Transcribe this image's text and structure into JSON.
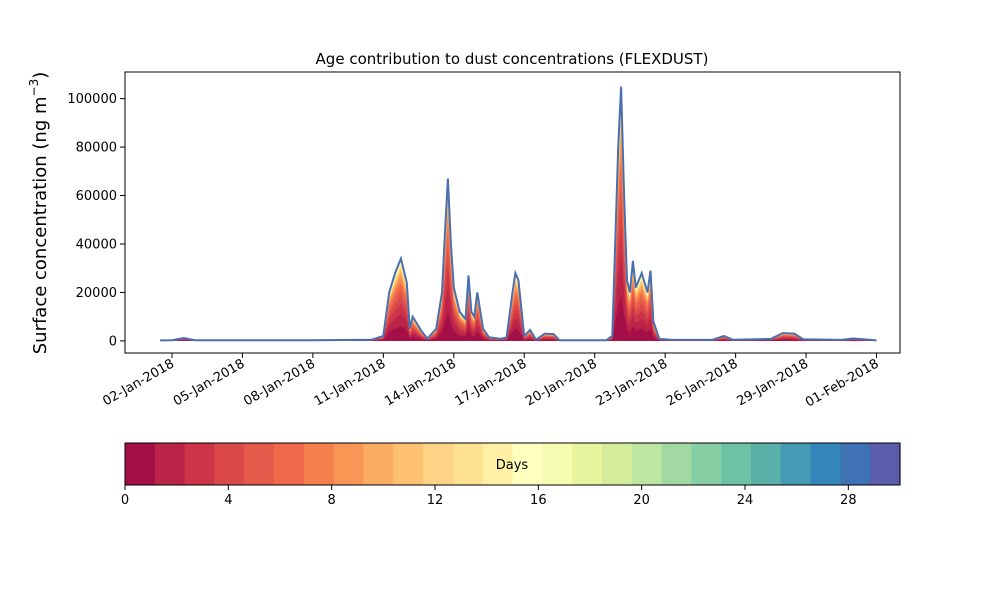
{
  "chart_data": {
    "type": "area",
    "title": "Age contribution to dust concentrations (FLEXDUST)",
    "ylabel": "Surface concentration (ng m⁻³)",
    "ylabel_main": "Surface concentration (ng m",
    "ylabel_exp": "−3",
    "ylabel_close": ")",
    "xlabel": "",
    "xlim": [
      "2017-12-31",
      "2018-02-02"
    ],
    "ylim": [
      -5000,
      111000
    ],
    "yticks": [
      0,
      20000,
      40000,
      60000,
      80000,
      100000
    ],
    "xticks": [
      {
        "date": "2018-01-02",
        "label": "02-Jan-2018"
      },
      {
        "date": "2018-01-05",
        "label": "05-Jan-2018"
      },
      {
        "date": "2018-01-08",
        "label": "08-Jan-2018"
      },
      {
        "date": "2018-01-11",
        "label": "11-Jan-2018"
      },
      {
        "date": "2018-01-14",
        "label": "14-Jan-2018"
      },
      {
        "date": "2018-01-17",
        "label": "17-Jan-2018"
      },
      {
        "date": "2018-01-20",
        "label": "20-Jan-2018"
      },
      {
        "date": "2018-01-23",
        "label": "23-Jan-2018"
      },
      {
        "date": "2018-01-26",
        "label": "26-Jan-2018"
      },
      {
        "date": "2018-01-29",
        "label": "29-Jan-2018"
      },
      {
        "date": "2018-02-01",
        "label": "01-Feb-2018"
      }
    ],
    "total_series": [
      [
        "2018-01-01T12:00",
        200
      ],
      [
        "2018-01-02T00:00",
        300
      ],
      [
        "2018-01-02T12:00",
        1200
      ],
      [
        "2018-01-03T00:00",
        250
      ],
      [
        "2018-01-05T00:00",
        300
      ],
      [
        "2018-01-08T00:00",
        250
      ],
      [
        "2018-01-10T12:00",
        500
      ],
      [
        "2018-01-11T00:00",
        2000
      ],
      [
        "2018-01-11T06:00",
        20000
      ],
      [
        "2018-01-11T12:00",
        28000
      ],
      [
        "2018-01-11T18:00",
        34000
      ],
      [
        "2018-01-12T00:00",
        24000
      ],
      [
        "2018-01-12T03:00",
        5000
      ],
      [
        "2018-01-12T06:00",
        10000
      ],
      [
        "2018-01-12T09:00",
        8000
      ],
      [
        "2018-01-12T15:00",
        4000
      ],
      [
        "2018-01-12T21:00",
        1000
      ],
      [
        "2018-01-13T06:00",
        5000
      ],
      [
        "2018-01-13T12:00",
        20000
      ],
      [
        "2018-01-13T15:00",
        45000
      ],
      [
        "2018-01-13T18:00",
        67000
      ],
      [
        "2018-01-13T21:00",
        40000
      ],
      [
        "2018-01-14T00:00",
        22000
      ],
      [
        "2018-01-14T06:00",
        12000
      ],
      [
        "2018-01-14T12:00",
        9000
      ],
      [
        "2018-01-14T15:00",
        27000
      ],
      [
        "2018-01-14T18:00",
        12000
      ],
      [
        "2018-01-14T21:00",
        10000
      ],
      [
        "2018-01-15T00:00",
        20000
      ],
      [
        "2018-01-15T06:00",
        5000
      ],
      [
        "2018-01-15T12:00",
        1500
      ],
      [
        "2018-01-16T00:00",
        800
      ],
      [
        "2018-01-16T06:00",
        1500
      ],
      [
        "2018-01-16T12:00",
        20000
      ],
      [
        "2018-01-16T15:00",
        28000
      ],
      [
        "2018-01-16T18:00",
        25000
      ],
      [
        "2018-01-17T00:00",
        2000
      ],
      [
        "2018-01-17T06:00",
        4500
      ],
      [
        "2018-01-17T12:00",
        500
      ],
      [
        "2018-01-17T21:00",
        3000
      ],
      [
        "2018-01-18T06:00",
        2800
      ],
      [
        "2018-01-18T12:00",
        300
      ],
      [
        "2018-01-20T12:00",
        300
      ],
      [
        "2018-01-20T18:00",
        2000
      ],
      [
        "2018-01-21T00:00",
        80000
      ],
      [
        "2018-01-21T03:00",
        105000
      ],
      [
        "2018-01-21T06:00",
        60000
      ],
      [
        "2018-01-21T09:00",
        25000
      ],
      [
        "2018-01-21T12:00",
        20000
      ],
      [
        "2018-01-21T15:00",
        33000
      ],
      [
        "2018-01-21T18:00",
        22000
      ],
      [
        "2018-01-22T00:00",
        28000
      ],
      [
        "2018-01-22T06:00",
        20000
      ],
      [
        "2018-01-22T09:00",
        29000
      ],
      [
        "2018-01-22T12:00",
        8000
      ],
      [
        "2018-01-22T18:00",
        800
      ],
      [
        "2018-01-23T06:00",
        500
      ],
      [
        "2018-01-25T00:00",
        400
      ],
      [
        "2018-01-25T12:00",
        2000
      ],
      [
        "2018-01-25T21:00",
        500
      ],
      [
        "2018-01-27T12:00",
        800
      ],
      [
        "2018-01-28T00:00",
        3200
      ],
      [
        "2018-01-28T12:00",
        3000
      ],
      [
        "2018-01-28T21:00",
        700
      ],
      [
        "2018-01-30T12:00",
        400
      ],
      [
        "2018-01-31T00:00",
        1000
      ],
      [
        "2018-01-31T12:00",
        600
      ],
      [
        "2018-02-01T00:00",
        200
      ]
    ],
    "colorbar": {
      "label": "Days",
      "min": 0,
      "max": 30,
      "ticks": [
        0,
        4,
        8,
        12,
        16,
        20,
        24,
        28
      ],
      "colors": [
        "#a50f47",
        "#bb2348",
        "#cc3548",
        "#da4849",
        "#e65a4b",
        "#f0694a",
        "#f57e4d",
        "#f99656",
        "#fdad61",
        "#fec170",
        "#fdd386",
        "#fee28f",
        "#fff0a6",
        "#ffffbe",
        "#f5fbb0",
        "#e8f59f",
        "#d6ee9b",
        "#bfe6a0",
        "#a2d9a3",
        "#86cea4",
        "#6dc2a6",
        "#58b0a9",
        "#459bb4",
        "#3386bc",
        "#3f72b4",
        "#5b5daa"
      ]
    }
  }
}
